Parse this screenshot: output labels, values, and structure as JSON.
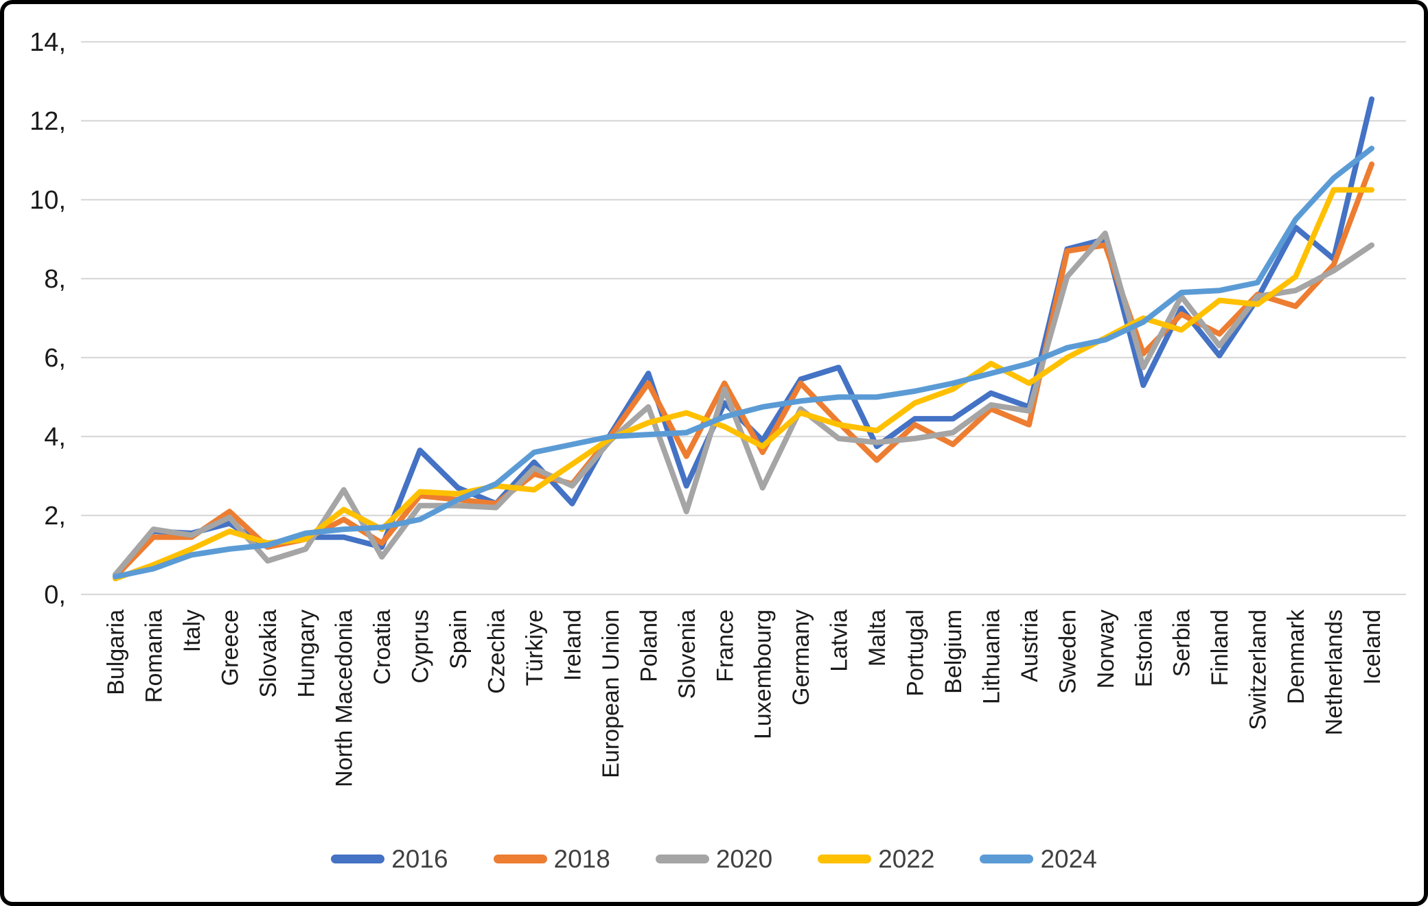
{
  "y_axis": {
    "tick_labels": [
      "0,",
      "2,",
      "4,",
      "6,",
      "8,",
      "10,",
      "12,",
      "14,"
    ],
    "tick_values": [
      0,
      2,
      4,
      6,
      8,
      10,
      12,
      14
    ]
  },
  "colors": {
    "grid": "#D9D9D9",
    "axis_text": "#1a1a1a",
    "legend_text": "#404040",
    "background": "#ffffff",
    "border": "#000000"
  },
  "chart_data": {
    "type": "line",
    "title": "",
    "xlabel": "",
    "ylabel": "",
    "ylim": [
      0,
      14
    ],
    "grid": "horizontal",
    "legend_position": "bottom",
    "categories": [
      "Bulgaria",
      "Romania",
      "Italy",
      "Greece",
      "Slovakia",
      "Hungary",
      "North Macedonia",
      "Croatia",
      "Cyprus",
      "Spain",
      "Czechia",
      "Türkiye",
      "Ireland",
      "European Union",
      "Poland",
      "Slovenia",
      "France",
      "Luxembourg",
      "Germany",
      "Latvia",
      "Malta",
      "Portugal",
      "Belgium",
      "Lithuania",
      "Austria",
      "Sweden",
      "Norway",
      "Estonia",
      "Serbia",
      "Finland",
      "Switzerland",
      "Denmark",
      "Netherlands",
      "Iceland"
    ],
    "series": [
      {
        "name": "2016",
        "color": "#4472C4",
        "values": [
          0.5,
          1.6,
          1.55,
          1.8,
          1.2,
          1.45,
          1.45,
          1.2,
          3.65,
          2.7,
          2.3,
          3.35,
          2.3,
          4.05,
          5.6,
          2.75,
          4.85,
          3.9,
          5.45,
          5.75,
          3.75,
          4.45,
          4.45,
          5.1,
          4.75,
          8.75,
          9.0,
          5.3,
          7.25,
          6.05,
          7.5,
          9.3,
          8.5,
          12.55
        ]
      },
      {
        "name": "2018",
        "color": "#ED7D31",
        "values": [
          0.45,
          1.45,
          1.45,
          2.1,
          1.2,
          1.4,
          1.9,
          1.3,
          2.5,
          2.4,
          2.3,
          3.05,
          2.8,
          4.0,
          5.35,
          3.5,
          5.35,
          3.6,
          5.35,
          4.35,
          3.4,
          4.3,
          3.8,
          4.7,
          4.3,
          8.7,
          8.85,
          6.1,
          7.1,
          6.6,
          7.6,
          7.3,
          8.35,
          10.9
        ]
      },
      {
        "name": "2020",
        "color": "#A5A5A5",
        "values": [
          0.5,
          1.65,
          1.5,
          1.95,
          0.85,
          1.15,
          2.65,
          0.95,
          2.25,
          2.25,
          2.2,
          3.2,
          2.75,
          3.9,
          4.75,
          2.1,
          5.2,
          2.7,
          4.7,
          3.95,
          3.85,
          3.95,
          4.1,
          4.8,
          4.65,
          8.05,
          9.15,
          5.75,
          7.55,
          6.3,
          7.55,
          7.7,
          8.2,
          8.85
        ]
      },
      {
        "name": "2022",
        "color": "#FFC000",
        "values": [
          0.4,
          0.75,
          1.15,
          1.6,
          1.3,
          1.4,
          2.15,
          1.65,
          2.6,
          2.55,
          2.75,
          2.65,
          3.3,
          3.95,
          4.35,
          4.6,
          4.25,
          3.75,
          4.6,
          4.3,
          4.15,
          4.85,
          5.2,
          5.85,
          5.35,
          6.0,
          6.5,
          7.0,
          6.7,
          7.45,
          7.35,
          8.05,
          10.25,
          10.25
        ]
      },
      {
        "name": "2024",
        "color": "#5B9BD5",
        "values": [
          0.45,
          0.65,
          1.0,
          1.15,
          1.25,
          1.55,
          1.65,
          1.7,
          1.9,
          2.4,
          2.8,
          3.6,
          3.8,
          4.0,
          4.05,
          4.1,
          4.5,
          4.75,
          4.9,
          5.0,
          5.0,
          5.15,
          5.35,
          5.6,
          5.85,
          6.25,
          6.45,
          6.9,
          7.65,
          7.7,
          7.9,
          9.5,
          10.55,
          11.3
        ]
      }
    ]
  }
}
